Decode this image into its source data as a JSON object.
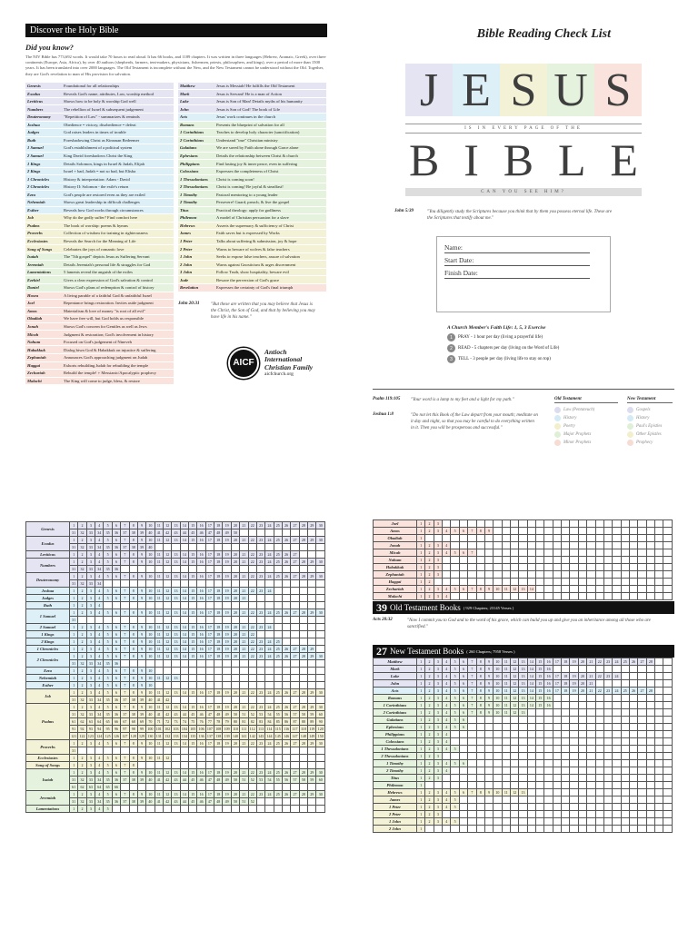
{
  "discover": {
    "title": "Discover the Holy Bible",
    "did_you_know": "Did you know?",
    "text": "The NIV Bible has 773,692 words. It would take 70 hours to read aloud. It has 66 books, and 1189 chapters. It was written in three languages (Hebrew, Aramaic, Greek), over three continents (Europe, Asia, Africa), by over 40 authors (shepherds, farmers, tent-makers, physicians, fishermen, priests, philosophers, and kings), over a period of more than 1500 years. It has been translated into over 2000 languages. The Old Testament is incomplete without the New, and the New Testament cannot be understood without the Old. Together, they are God's revelation to man of His provision for salvation."
  },
  "summary_left": [
    {
      "book": "Genesis",
      "desc": "Foundational for all relationships",
      "cat": "law"
    },
    {
      "book": "Exodus",
      "desc": "Reveals God's name, attributes, Law, worship method",
      "cat": "law"
    },
    {
      "book": "Leviticus",
      "desc": "Shows how to be holy & worship God well",
      "cat": "law"
    },
    {
      "book": "Numbers",
      "desc": "The rebellion of Israel & subsequent judgement",
      "cat": "law"
    },
    {
      "book": "Deuteronomy",
      "desc": "\"Repetition of Law\" - summarizes & reminds",
      "cat": "law"
    },
    {
      "book": "Joshua",
      "desc": "Obedience = victory, disobedience = defeat",
      "cat": "hist"
    },
    {
      "book": "Judges",
      "desc": "God raises leaders in times of trouble",
      "cat": "hist"
    },
    {
      "book": "Ruth",
      "desc": "Foreshadowing Christ as Kinsman Redeemer",
      "cat": "hist"
    },
    {
      "book": "1 Samuel",
      "desc": "God's establishment of a political system",
      "cat": "hist"
    },
    {
      "book": "2 Samuel",
      "desc": "King David foreshadows Christ the King",
      "cat": "hist"
    },
    {
      "book": "1 Kings",
      "desc": "Details Solomon, kings in Israel & Judah, Elijah",
      "cat": "hist"
    },
    {
      "book": "2 Kings",
      "desc": "Israel + bad, Judah = not so bad, but Elisha",
      "cat": "hist"
    },
    {
      "book": "1 Chronicles",
      "desc": "History & interpretation: Adam - David",
      "cat": "hist"
    },
    {
      "book": "2 Chronicles",
      "desc": "History II: Solomon - the exile's return",
      "cat": "hist"
    },
    {
      "book": "Ezra",
      "desc": "God's people are restored even as they are exiled",
      "cat": "hist"
    },
    {
      "book": "Nehemiah",
      "desc": "Shows great leadership in difficult challenges",
      "cat": "hist"
    },
    {
      "book": "Esther",
      "desc": "Reveals how God works through circumstances",
      "cat": "hist"
    },
    {
      "book": "Job",
      "desc": "Why do the godly suffer? Find comfort here",
      "cat": "poet"
    },
    {
      "book": "Psalms",
      "desc": "The book of worship: poems & hymns",
      "cat": "poet"
    },
    {
      "book": "Proverbs",
      "desc": "Collection of wisdom for training in righteousness",
      "cat": "poet"
    },
    {
      "book": "Ecclesiastes",
      "desc": "Reveals the Search for the Meaning of Life",
      "cat": "poet"
    },
    {
      "book": "Song of Songs",
      "desc": "Celebrates the joys of romantic love",
      "cat": "poet"
    },
    {
      "book": "Isaiah",
      "desc": "The \"5th gospel\" depicts Jesus as Suffering Servant",
      "cat": "maj"
    },
    {
      "book": "Jeremiah",
      "desc": "Details Jeremiah's personal life & struggles for God",
      "cat": "maj"
    },
    {
      "book": "Lamentations",
      "desc": "5 laments reveal the anguish of the exiles",
      "cat": "maj"
    },
    {
      "book": "Ezekiel",
      "desc": "Gives a clear expression of God's salvation & control",
      "cat": "maj"
    },
    {
      "book": "Daniel",
      "desc": "Shows God's plans of redemption & control of history",
      "cat": "maj"
    },
    {
      "book": "Hosea",
      "desc": "A living parable of a faithful God & unfaithful Israel",
      "cat": "min"
    },
    {
      "book": "Joel",
      "desc": "Repentance brings restoration. Invites aside judgment",
      "cat": "min"
    },
    {
      "book": "Amos",
      "desc": "Materialism & love of money \"is root of all evil\"",
      "cat": "min"
    },
    {
      "book": "Obadiah",
      "desc": "We have free will, but God holds us responsible",
      "cat": "min"
    },
    {
      "book": "Jonah",
      "desc": "Shows God's concern for Gentiles as well as Jews",
      "cat": "min"
    },
    {
      "book": "Micah",
      "desc": "Judgment & restoration; God's involvement in history",
      "cat": "min"
    },
    {
      "book": "Nahum",
      "desc": "Focused on God's judgement of Nineveh",
      "cat": "min"
    },
    {
      "book": "Habakkuk",
      "desc": "Dialog btwn God & Habakkuk on injustice & suffering",
      "cat": "min"
    },
    {
      "book": "Zephaniah",
      "desc": "Announces God's approaching judgment on Judah",
      "cat": "min"
    },
    {
      "book": "Haggai",
      "desc": "Exhorts rebuilding Judah for rebuilding the temple",
      "cat": "min"
    },
    {
      "book": "Zechariah",
      "desc": "Rebuild the temple! + Messianic/Apocalyptic prophecy",
      "cat": "min"
    },
    {
      "book": "Malachi",
      "desc": "The King will come to judge, bless, & restore",
      "cat": "min"
    }
  ],
  "summary_right": [
    {
      "book": "Matthew",
      "desc": "Jesus is Messiah! He fulfills the Old Testament",
      "cat": "gos"
    },
    {
      "book": "Mark",
      "desc": "Jesus is Servant! He is a man of Action",
      "cat": "gos"
    },
    {
      "book": "Luke",
      "desc": "Jesus is Son of Man! Details myths of his humanity",
      "cat": "gos"
    },
    {
      "book": "John",
      "desc": "Jesus is Son of God! The book of Life",
      "cat": "gos"
    },
    {
      "book": "Acts",
      "desc": "Jesus' work continues in the church",
      "cat": "act"
    },
    {
      "book": "Romans",
      "desc": "Presents the blueprint of salvation for all",
      "cat": "pau"
    },
    {
      "book": "1 Corinthians",
      "desc": "Teaches to develop holy character (sanctification)",
      "cat": "pau"
    },
    {
      "book": "2 Corinthians",
      "desc": "Understand \"true\" Christian ministry",
      "cat": "pau"
    },
    {
      "book": "Galatians",
      "desc": "We are saved by Faith alone through Grace alone",
      "cat": "pau"
    },
    {
      "book": "Ephesians",
      "desc": "Details the relationship between Christ & church",
      "cat": "pau"
    },
    {
      "book": "Philippians",
      "desc": "Find lasting joy & inner peace, even in suffering",
      "cat": "pau"
    },
    {
      "book": "Colossians",
      "desc": "Expresses the completeness of Christ",
      "cat": "pau"
    },
    {
      "book": "1 Thessalonians",
      "desc": "Christ is coming soon!",
      "cat": "pau"
    },
    {
      "book": "2 Thessalonians",
      "desc": "Christ is coming! Be joyful & steadfast!",
      "cat": "pau"
    },
    {
      "book": "1 Timothy",
      "desc": "Pastoral mentoring to a young leader",
      "cat": "pau"
    },
    {
      "book": "2 Timothy",
      "desc": "Persevere! Guard, preach, & live the gospel",
      "cat": "pau"
    },
    {
      "book": "Titus",
      "desc": "Practical theology: apply for godliness",
      "cat": "pau"
    },
    {
      "book": "Philemon",
      "desc": "A model of Christian persuasion for a slave",
      "cat": "pau"
    },
    {
      "book": "Hebrews",
      "desc": "Asserts the supremacy & sufficiency of Christ",
      "cat": "gen"
    },
    {
      "book": "James",
      "desc": "Faith saves but is expressed by Works",
      "cat": "gen"
    },
    {
      "book": "1 Peter",
      "desc": "Talks about suffering & submission, joy & hope",
      "cat": "gen"
    },
    {
      "book": "2 Peter",
      "desc": "Warns to beware of wolves & false teachers",
      "cat": "gen"
    },
    {
      "book": "1 John",
      "desc": "Seeks to expose false teachers, assure of salvation",
      "cat": "gen"
    },
    {
      "book": "2 John",
      "desc": "Warns against Gnosticism & urges discernment",
      "cat": "gen"
    },
    {
      "book": "3 John",
      "desc": "Follow Truth, show hospitality, beware evil",
      "cat": "gen"
    },
    {
      "book": "Jude",
      "desc": "Beware the perversion of God's grace",
      "cat": "gen"
    },
    {
      "book": "Revelation",
      "desc": "Expresses the certainty of God's final triumph",
      "cat": "pro"
    }
  ],
  "john2031": {
    "ref": "John 20:31",
    "text": "\"But these are written that you may believe that Jesus is the Christ, the Son of God, and that by believing you may have life in his name.\""
  },
  "logo": {
    "mark": "AICF",
    "l1": "Antioch",
    "l2": "International",
    "l3": "Christian Family",
    "url": "aicfchurch.org"
  },
  "checklist": {
    "title": "Bible Reading Check List",
    "jesus_letters": [
      "J",
      "E",
      "S",
      "U",
      "S"
    ],
    "every_page": "IS IN EVERY PAGE OF THE",
    "bible_letters": [
      "B",
      "I",
      "B",
      "L",
      "E"
    ],
    "can_you": "CAN YOU SEE HIM?",
    "john539_ref": "John 5:39",
    "john539_text": "\"You diligently study the Scriptures because you think that by them you possess eternal life. These are the Scriptures that testify about me.\"",
    "name": "Name:",
    "start": "Start Date:",
    "finish": "Finish Date:",
    "exercise_title": "A Church Member's Faith Life: 1, 5, 3 Exercise",
    "exercise": [
      {
        "n": "1",
        "t": "PRAY - 1 hour per day (living a prayerful life)"
      },
      {
        "n": "2",
        "t": "READ - 5 chapters per day (living on the Word of Life)"
      },
      {
        "n": "3",
        "t": "TELL - 3 people per day (living life to stay on top)"
      }
    ],
    "psalm_ref": "Psalm 119:105",
    "psalm_text": "\"Your word is a lamp to my feet and a light for my path.\"",
    "joshua_ref": "Joshua 1:8",
    "joshua_text": "\"Do not let this Book of the Law depart from your mouth; meditate on it day and night, so that you may be careful to do everything written in it. Then you will be prosperous and successful.\"",
    "ot_legend_title": "Old Testament",
    "ot_legend": [
      {
        "t": "Law (Pentateuch)",
        "c": "#dcdcef"
      },
      {
        "t": "History",
        "c": "#d4ebf5"
      },
      {
        "t": "Poetry",
        "c": "#f2efcc"
      },
      {
        "t": "Major Prophets",
        "c": "#dff0d6"
      },
      {
        "t": "Minor Prophets",
        "c": "#f7dcd3"
      }
    ],
    "nt_legend_title": "New Testament",
    "nt_legend": [
      {
        "t": "Gospels",
        "c": "#dcdcef"
      },
      {
        "t": "History",
        "c": "#d4ebf5"
      },
      {
        "t": "Paul's Epistles",
        "c": "#dff0d6"
      },
      {
        "t": "Other Epistles",
        "c": "#f2efcc"
      },
      {
        "t": "Prophecy",
        "c": "#f7dcd3"
      }
    ]
  },
  "ot_grid": [
    {
      "book": "Genesis",
      "ch": 50,
      "cat": "law"
    },
    {
      "book": "Exodus",
      "ch": 40,
      "cat": "law"
    },
    {
      "book": "Leviticus",
      "ch": 27,
      "cat": "law"
    },
    {
      "book": "Numbers",
      "ch": 36,
      "cat": "law"
    },
    {
      "book": "Deuteronomy",
      "ch": 34,
      "cat": "law"
    },
    {
      "book": "Joshua",
      "ch": 24,
      "cat": "hist"
    },
    {
      "book": "Judges",
      "ch": 21,
      "cat": "hist"
    },
    {
      "book": "Ruth",
      "ch": 4,
      "cat": "hist"
    },
    {
      "book": "1 Samuel",
      "ch": 31,
      "cat": "hist"
    },
    {
      "book": "2 Samuel",
      "ch": 24,
      "cat": "hist"
    },
    {
      "book": "1 Kings",
      "ch": 22,
      "cat": "hist"
    },
    {
      "book": "2 Kings",
      "ch": 25,
      "cat": "hist"
    },
    {
      "book": "1 Chronicles",
      "ch": 29,
      "cat": "hist"
    },
    {
      "book": "2 Chronicles",
      "ch": 36,
      "cat": "hist"
    },
    {
      "book": "Ezra",
      "ch": 10,
      "cat": "hist"
    },
    {
      "book": "Nehemiah",
      "ch": 13,
      "cat": "hist"
    },
    {
      "book": "Esther",
      "ch": 10,
      "cat": "hist"
    },
    {
      "book": "Job",
      "ch": 42,
      "cat": "poet"
    },
    {
      "book": "Psalms",
      "ch": 150,
      "cat": "poet"
    },
    {
      "book": "Proverbs",
      "ch": 31,
      "cat": "poet"
    },
    {
      "book": "Ecclesiastes",
      "ch": 12,
      "cat": "poet"
    },
    {
      "book": "Song of Songs",
      "ch": 8,
      "cat": "poet"
    },
    {
      "book": "Isaiah",
      "ch": 66,
      "cat": "maj"
    },
    {
      "book": "Jeremiah",
      "ch": 52,
      "cat": "maj"
    },
    {
      "book": "Lamentations",
      "ch": 5,
      "cat": "maj"
    }
  ],
  "minor_grid": [
    {
      "book": "Joel",
      "ch": 3
    },
    {
      "book": "Amos",
      "ch": 9
    },
    {
      "book": "Obadiah",
      "ch": 1
    },
    {
      "book": "Jonah",
      "ch": 4
    },
    {
      "book": "Micah",
      "ch": 7
    },
    {
      "book": "Nahum",
      "ch": 3
    },
    {
      "book": "Habakkuk",
      "ch": 3
    },
    {
      "book": "Zephaniah",
      "ch": 3
    },
    {
      "book": "Haggai",
      "ch": 2
    },
    {
      "book": "Zechariah",
      "ch": 14
    },
    {
      "book": "Malachi",
      "ch": 4
    }
  ],
  "ot_total": {
    "num": "39",
    "label": "Old Testament Books",
    "sub": "( 929 Chapters; 23145 Verses )"
  },
  "acts2032": {
    "ref": "Acts 20:32",
    "text": "\"Now I commit you to God and to the word of his grace, which can build you up and give you an inheritance among all those who are sanctified.\""
  },
  "nt_total": {
    "num": "27",
    "label": "New Testament Books",
    "sub": "( 260 Chapters; 7958 Verses )"
  },
  "nt_grid": [
    {
      "book": "Matthew",
      "ch": 28,
      "cat": "gos"
    },
    {
      "book": "Mark",
      "ch": 16,
      "cat": "gos"
    },
    {
      "book": "Luke",
      "ch": 24,
      "cat": "gos"
    },
    {
      "book": "John",
      "ch": 21,
      "cat": "gos"
    },
    {
      "book": "Acts",
      "ch": 28,
      "cat": "act"
    },
    {
      "book": "Romans",
      "ch": 16,
      "cat": "pau"
    },
    {
      "book": "1 Corinthians",
      "ch": 16,
      "cat": "pau"
    },
    {
      "book": "2 Corinthians",
      "ch": 13,
      "cat": "pau"
    },
    {
      "book": "Galatians",
      "ch": 6,
      "cat": "pau"
    },
    {
      "book": "Ephesians",
      "ch": 6,
      "cat": "pau"
    },
    {
      "book": "Philippians",
      "ch": 4,
      "cat": "pau"
    },
    {
      "book": "Colossians",
      "ch": 4,
      "cat": "pau"
    },
    {
      "book": "1 Thessalonians",
      "ch": 5,
      "cat": "pau"
    },
    {
      "book": "2 Thessalonians",
      "ch": 3,
      "cat": "pau"
    },
    {
      "book": "1 Timothy",
      "ch": 6,
      "cat": "pau"
    },
    {
      "book": "2 Timothy",
      "ch": 4,
      "cat": "pau"
    },
    {
      "book": "Titus",
      "ch": 3,
      "cat": "pau"
    },
    {
      "book": "Philemon",
      "ch": 1,
      "cat": "pau"
    },
    {
      "book": "Hebrews",
      "ch": 13,
      "cat": "gen"
    },
    {
      "book": "James",
      "ch": 5,
      "cat": "gen"
    },
    {
      "book": "1 Peter",
      "ch": 5,
      "cat": "gen"
    },
    {
      "book": "2 Peter",
      "ch": 3,
      "cat": "gen"
    },
    {
      "book": "1 John",
      "ch": 5,
      "cat": "gen"
    },
    {
      "book": "2 John",
      "ch": 1,
      "cat": "gen"
    }
  ],
  "colors": {
    "law": "#e4e4f2",
    "hist": "#ddeff7",
    "poet": "#f4f2d6",
    "maj": "#e5f2dd",
    "min": "#f9e3dc",
    "gos": "#e4e4f2",
    "act": "#ddeff7",
    "pau": "#e5f2dd",
    "gen": "#f4f2d6",
    "pro": "#f9e3dc"
  }
}
